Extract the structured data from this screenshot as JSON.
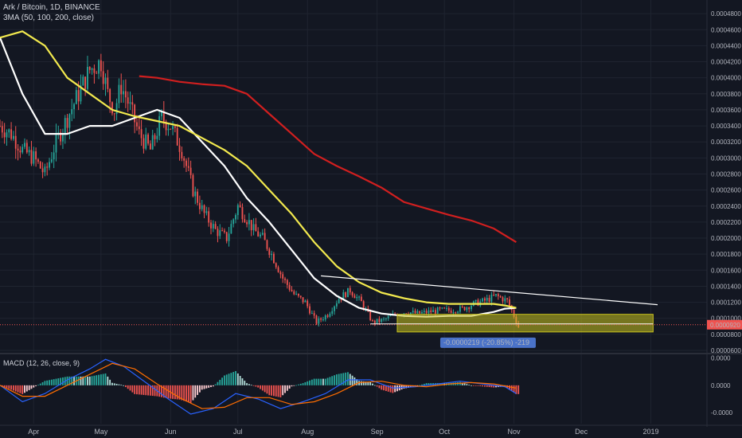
{
  "header": {
    "symbol_line": "Ark / Bitcoin, 1D, BINANCE",
    "ma_line": "3MA (50, 100, 200, close)",
    "macd_line": "MACD (12, 26, close, 9)"
  },
  "colors": {
    "background": "#131722",
    "grid": "#1f2430",
    "candle_up": "#26a69a",
    "candle_down": "#ef5350",
    "ma50": "#ffffff",
    "ma100": "#f2e94e",
    "ma200": "#d11f1f",
    "box_fill": "#c8c21e",
    "macd_line": "#2962ff",
    "signal_line": "#ff6d00",
    "price_tag": "#ef5350",
    "measure_tag": "#4a72c8"
  },
  "chart_data": {
    "type": "candlestick",
    "symbol": "Ark / Bitcoin",
    "interval": "1D",
    "exchange": "BINANCE",
    "price_axis_labels": [
      "0.0004800",
      "0.0004600",
      "0.0004400",
      "0.0004200",
      "0.0004000",
      "0.0003800",
      "0.0003600",
      "0.0003400",
      "0.0003200",
      "0.0003000",
      "0.0002800",
      "0.0002600",
      "0.0002400",
      "0.0002200",
      "0.0002000",
      "0.0001800",
      "0.0001600",
      "0.0001400",
      "0.0001200",
      "0.0001000",
      "0.0000800",
      "0.0000600"
    ],
    "price_axis_values": [
      0.00048,
      0.00046,
      0.00044,
      0.00042,
      0.0004,
      0.00038,
      0.00036,
      0.00034,
      0.00032,
      0.0003,
      0.00028,
      0.00026,
      0.00024,
      0.00022,
      0.0002,
      0.00018,
      0.00016,
      0.00014,
      0.00012,
      0.0001,
      8e-05,
      6e-05
    ],
    "ylim": [
      5.8e-05,
      0.000497
    ],
    "time_axis_labels": [
      "Apr",
      "May",
      "Jun",
      "Jul",
      "Aug",
      "Sep",
      "Oct",
      "Nov",
      "Dec",
      "2019"
    ],
    "time_axis_days": [
      0,
      30,
      61,
      91,
      122,
      153,
      183,
      214,
      244,
      275
    ],
    "xlim_days": [
      -15,
      300
    ],
    "last_price_label": "0.0000920",
    "last_price": 9.2e-05,
    "candle_anchors": {
      "days": [
        -15,
        -10,
        -5,
        0,
        5,
        10,
        15,
        20,
        25,
        30,
        33,
        36,
        39,
        42,
        47,
        52,
        57,
        61,
        66,
        71,
        76,
        81,
        86,
        91,
        96,
        98,
        102,
        106,
        111,
        116,
        121,
        126,
        131,
        136,
        141,
        146,
        151,
        156,
        161,
        166,
        171,
        176,
        181,
        186,
        191,
        196,
        201,
        206,
        211,
        213,
        216
      ],
      "closes": [
        0.00034,
        0.00033,
        0.00031,
        0.0003,
        0.00028,
        0.00032,
        0.00035,
        0.00038,
        0.00041,
        0.00042,
        0.00038,
        0.00036,
        0.00039,
        0.00037,
        0.00033,
        0.00031,
        0.00035,
        0.00034,
        0.00031,
        0.00026,
        0.00023,
        0.00021,
        0.0002,
        0.00024,
        0.00022,
        0.00021,
        0.0002,
        0.00018,
        0.00015,
        0.00013,
        0.00012,
        9.5e-05,
        0.000105,
        0.000125,
        0.000135,
        0.00012,
        9.5e-05,
        9.8e-05,
        0.000105,
        0.000108,
        0.000106,
        0.000108,
        0.00011,
        0.00011,
        0.000112,
        0.000118,
        0.000122,
        0.000128,
        0.000122,
        0.00011,
        9e-05
      ]
    },
    "series": [
      {
        "name": "MA 50",
        "days": [
          -15,
          -5,
          5,
          15,
          25,
          35,
          45,
          55,
          65,
          75,
          85,
          95,
          105,
          115,
          125,
          135,
          145,
          155,
          165,
          175,
          185,
          195,
          205,
          210,
          215
        ],
        "values": [
          0.00045,
          0.00038,
          0.00033,
          0.00033,
          0.00034,
          0.00034,
          0.00035,
          0.00036,
          0.00035,
          0.00032,
          0.00029,
          0.00025,
          0.00022,
          0.000185,
          0.00015,
          0.000128,
          0.000113,
          0.000106,
          0.000103,
          0.000102,
          0.000103,
          0.000103,
          0.000108,
          0.000112,
          0.000113
        ]
      },
      {
        "name": "MA 100",
        "days": [
          -15,
          -5,
          5,
          15,
          25,
          35,
          45,
          55,
          65,
          75,
          85,
          95,
          105,
          115,
          125,
          135,
          145,
          155,
          165,
          175,
          185,
          195,
          205,
          210,
          215
        ],
        "values": [
          0.00045,
          0.000458,
          0.00044,
          0.0004,
          0.00038,
          0.00036,
          0.000352,
          0.000346,
          0.00034,
          0.000325,
          0.00031,
          0.00029,
          0.00026,
          0.00023,
          0.000195,
          0.000165,
          0.000145,
          0.000132,
          0.000125,
          0.00012,
          0.000118,
          0.000118,
          0.000118,
          0.000116,
          0.000113
        ]
      },
      {
        "name": "MA 200",
        "days": [
          47,
          55,
          65,
          75,
          85,
          95,
          105,
          115,
          125,
          135,
          145,
          155,
          165,
          175,
          185,
          195,
          205,
          215
        ],
        "values": [
          0.000402,
          0.0004,
          0.000395,
          0.000392,
          0.00039,
          0.00038,
          0.000355,
          0.00033,
          0.000305,
          0.00029,
          0.000277,
          0.000263,
          0.000245,
          0.000237,
          0.000229,
          0.000222,
          0.000212,
          0.000195
        ]
      }
    ],
    "trend_line": {
      "from_day": 128,
      "from_value": 0.000153,
      "to_day": 278,
      "to_value": 0.000117
    },
    "support_line": {
      "from_day": 150,
      "to_day": 276,
      "value": 9.3e-05
    },
    "support_box": {
      "from_day": 162,
      "to_day": 276,
      "top": 0.000105,
      "bottom": 8.3e-05
    },
    "measure_label": "-0.0000219 (-20.85%) -219",
    "macd": {
      "axis_labels": [
        "0.0000",
        "0.0000",
        "-0.0000"
      ],
      "axis_values": [
        2e-05,
        0.0,
        -2e-05
      ],
      "ylim": [
        -2.8e-05,
        2.2e-05
      ],
      "macd_days": [
        -15,
        -5,
        5,
        15,
        25,
        32,
        40,
        50,
        60,
        70,
        80,
        90,
        100,
        110,
        120,
        130,
        140,
        150,
        160,
        170,
        180,
        190,
        200,
        210,
        215
      ],
      "macd_values": [
        0.0,
        -1.2e-05,
        -6e-06,
        4e-06,
        1.2e-05,
        1.9e-05,
        1.4e-05,
        2e-06,
        -1e-05,
        -2.1e-05,
        -1.7e-05,
        -6e-06,
        -1e-05,
        -1.7e-05,
        -1.2e-05,
        -6e-06,
        4e-06,
        4e-06,
        -2e-06,
        -1e-06,
        1e-06,
        3e-06,
        1e-06,
        -1e-06,
        -6e-06
      ],
      "signal_days": [
        -15,
        -5,
        5,
        15,
        25,
        35,
        45,
        55,
        65,
        75,
        85,
        95,
        105,
        115,
        125,
        135,
        145,
        155,
        165,
        175,
        185,
        195,
        205,
        215
      ],
      "signal_values": [
        0.0,
        -8e-06,
        -8e-06,
        0.0,
        8e-06,
        1.6e-05,
        1.2e-05,
        1e-06,
        -9e-06,
        -1.7e-05,
        -1.6e-05,
        -9e-06,
        -9e-06,
        -1.4e-05,
        -1.2e-05,
        -6e-06,
        2e-06,
        3e-06,
        0.0,
        -1e-06,
        1e-06,
        2e-06,
        1e-06,
        -2e-06
      ]
    }
  }
}
